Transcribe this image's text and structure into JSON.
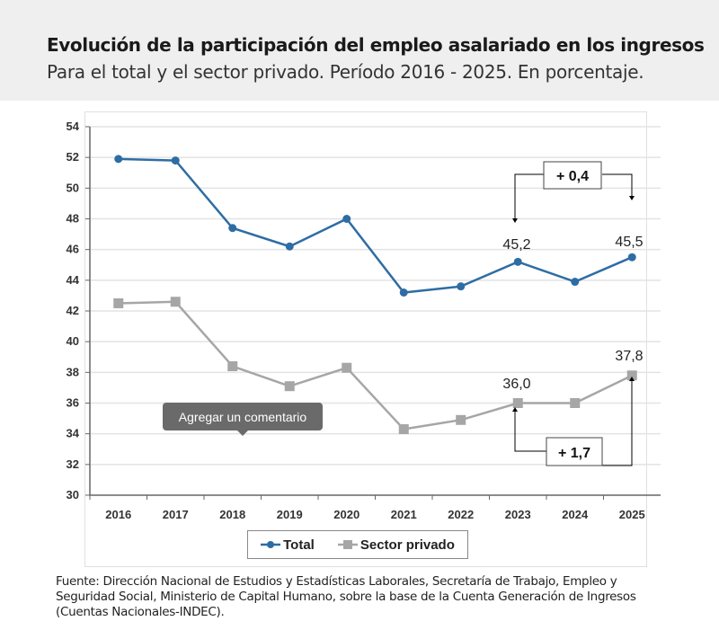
{
  "header": {
    "title": "Evolución de la participación del empleo asalariado en los ingresos",
    "subtitle": "Para el total y el sector privado. Período 2016 - 2025. En porcentaje."
  },
  "chart_data": {
    "type": "line",
    "categories": [
      "2016",
      "2017",
      "2018",
      "2019",
      "2020",
      "2021",
      "2022",
      "2023",
      "2024",
      "2025"
    ],
    "ylim": [
      30,
      54
    ],
    "yticks": [
      "30",
      "32",
      "34",
      "36",
      "38",
      "40",
      "42",
      "44",
      "46",
      "48",
      "50",
      "52",
      "54"
    ],
    "grid": true,
    "legend_position": "bottom",
    "series": [
      {
        "name": "Total",
        "color": "#2e6da4",
        "marker": "circle",
        "values": [
          51.9,
          51.8,
          47.4,
          46.2,
          48.0,
          43.2,
          43.6,
          45.2,
          43.9,
          45.5
        ]
      },
      {
        "name": "Sector privado",
        "color": "#a6a6a6",
        "marker": "square",
        "values": [
          42.5,
          42.6,
          38.4,
          37.1,
          38.3,
          34.3,
          34.9,
          36.0,
          36.0,
          37.8
        ]
      }
    ],
    "data_labels": {
      "total_2023": "45,2",
      "total_2025": "45,5",
      "privado_2023": "36,0",
      "privado_2025": "37,8"
    },
    "annotations": {
      "total_change": "+ 0,4",
      "privado_change": "+ 1,7"
    }
  },
  "tooltip": "Agregar un comentario",
  "footer": "Fuente: Dirección Nacional de Estudios y Estadísticas Laborales, Secretaría de Trabajo, Empleo y Seguridad Social, Ministerio de Capital Humano, sobre la base de la Cuenta Generación de Ingresos (Cuentas Nacionales-INDEC)."
}
